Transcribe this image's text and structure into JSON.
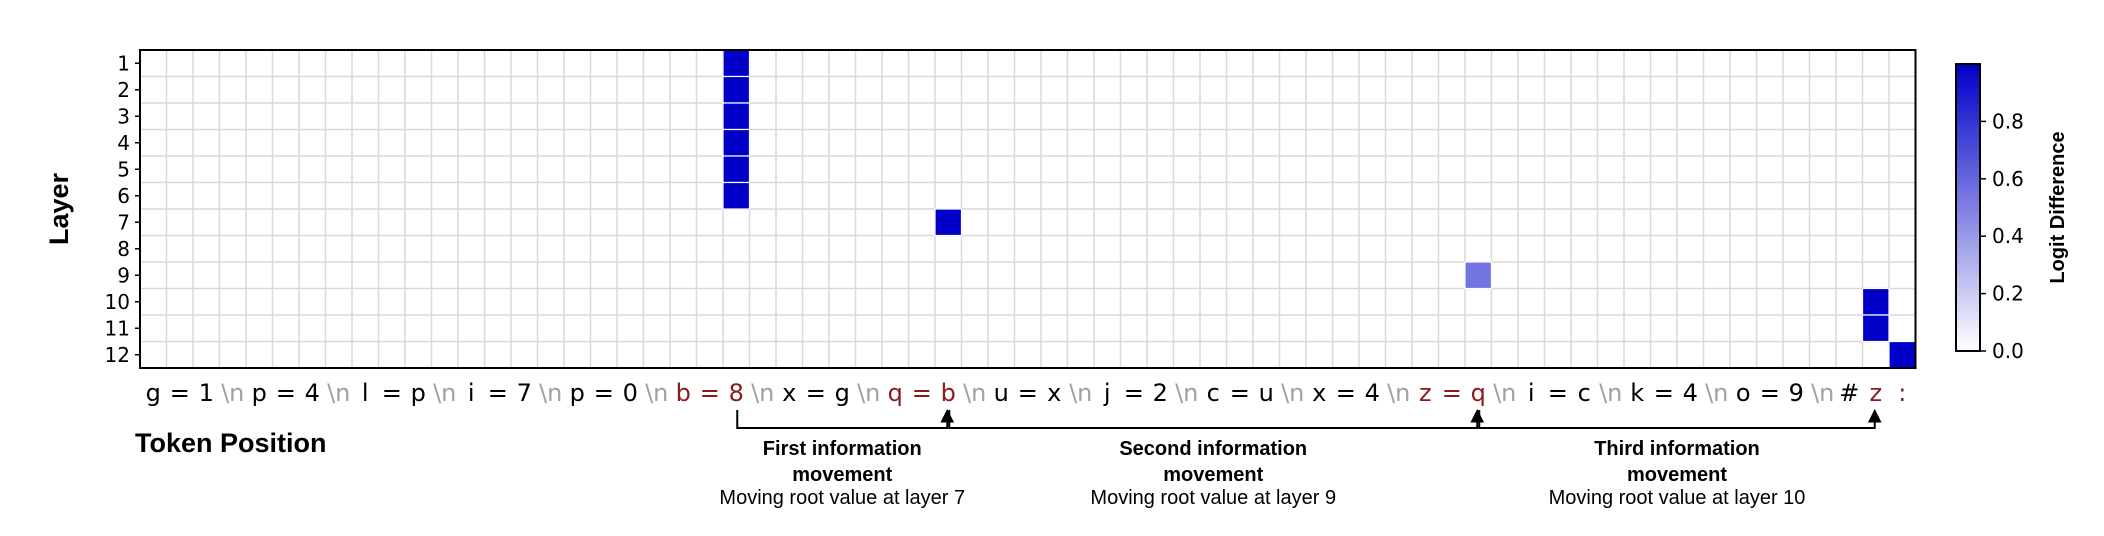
{
  "chart_data": {
    "type": "heatmap",
    "ylabel": "Layer",
    "xlabel": "Token Position",
    "rows": [
      "1",
      "2",
      "3",
      "4",
      "5",
      "6",
      "7",
      "8",
      "9",
      "10",
      "11",
      "12"
    ],
    "tokens": [
      "g",
      "=",
      "1",
      "\\n",
      "p",
      "=",
      "4",
      "\\n",
      "l",
      "=",
      "p",
      "\\n",
      "i",
      "=",
      "7",
      "\\n",
      "p",
      "=",
      "0",
      "\\n",
      "b",
      "=",
      "8",
      "\\n",
      "x",
      "=",
      "g",
      "\\n",
      "q",
      "=",
      "b",
      "\\n",
      "u",
      "=",
      "x",
      "\\n",
      "j",
      "=",
      "2",
      "\\n",
      "c",
      "=",
      "u",
      "\\n",
      "x",
      "=",
      "4",
      "\\n",
      "z",
      "=",
      "q",
      "\\n",
      "i",
      "=",
      "c",
      "\\n",
      "k",
      "=",
      "4",
      "\\n",
      "o",
      "=",
      "9",
      "\\n",
      "#",
      "z",
      ":"
    ],
    "highlighted_tokens": [
      20,
      21,
      22,
      28,
      29,
      30,
      48,
      49,
      50,
      65,
      66
    ],
    "colorbar": {
      "label": "Logit Difference",
      "ticks": [
        "0.0",
        "0.2",
        "0.4",
        "0.6",
        "0.8"
      ],
      "range": [
        0,
        1
      ]
    },
    "cells": [
      {
        "layer": 1,
        "token": 22,
        "value": 1.0
      },
      {
        "layer": 2,
        "token": 22,
        "value": 1.0
      },
      {
        "layer": 3,
        "token": 22,
        "value": 1.0
      },
      {
        "layer": 4,
        "token": 22,
        "value": 1.0
      },
      {
        "layer": 5,
        "token": 22,
        "value": 1.0
      },
      {
        "layer": 6,
        "token": 22,
        "value": 1.0
      },
      {
        "layer": 7,
        "token": 30,
        "value": 1.0
      },
      {
        "layer": 9,
        "token": 50,
        "value": 0.55
      },
      {
        "layer": 10,
        "token": 65,
        "value": 1.0
      },
      {
        "layer": 11,
        "token": 65,
        "value": 1.0
      },
      {
        "layer": 12,
        "token": 66,
        "value": 1.0
      }
    ],
    "annotations": [
      {
        "from": 22,
        "to": 30,
        "title": [
          "First information",
          "movement"
        ],
        "subtitle": "Moving root value at layer 7"
      },
      {
        "from": 30,
        "to": 50,
        "title": [
          "Second information",
          "movement"
        ],
        "subtitle": "Moving root value at layer 9"
      },
      {
        "from": 50,
        "to": 65,
        "title": [
          "Third information",
          "movement"
        ],
        "subtitle": "Moving root value at layer 10"
      }
    ]
  },
  "colors": {
    "cell_max": "#0000c8",
    "cell_min": "#ffffff",
    "grid": "#d9d9d9",
    "highlight_token": "#8b1a1a",
    "newline_token": "#a0a0a0"
  }
}
